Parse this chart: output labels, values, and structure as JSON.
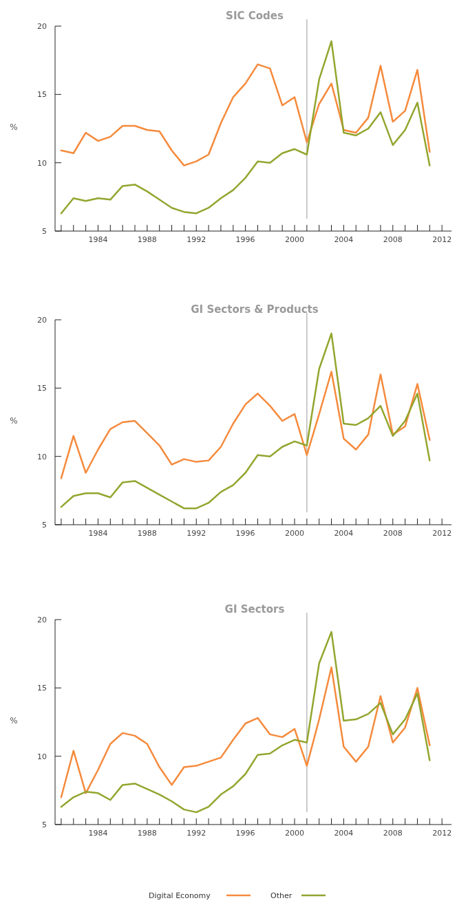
{
  "chart_data": [
    {
      "type": "line",
      "title": "SIC Codes",
      "ylabel": "%",
      "x": [
        1981,
        1982,
        1983,
        1984,
        1985,
        1986,
        1987,
        1988,
        1989,
        1990,
        1991,
        1992,
        1993,
        1994,
        1995,
        1996,
        1997,
        1998,
        1999,
        2000,
        2001,
        2002,
        2003,
        2004,
        2005,
        2006,
        2007,
        2008,
        2009,
        2010,
        2011
      ],
      "series": [
        {
          "color": "#f58a3c",
          "values": [
            10.9,
            10.7,
            12.2,
            11.6,
            11.9,
            12.7,
            12.7,
            12.4,
            12.3,
            10.9,
            9.8,
            10.1,
            10.6,
            12.9,
            14.8,
            15.8,
            17.2,
            16.9,
            14.2,
            14.8,
            11.5,
            14.3,
            15.8,
            12.4,
            12.2,
            13.3,
            17.1,
            13.0,
            13.8,
            16.8,
            10.8
          ]
        },
        {
          "color": "#93a52e",
          "values": [
            6.3,
            7.4,
            7.2,
            7.4,
            7.3,
            8.3,
            8.4,
            7.9,
            7.3,
            6.7,
            6.4,
            6.3,
            6.7,
            7.4,
            8.0,
            8.9,
            10.1,
            10.0,
            10.7,
            11.0,
            10.6,
            16.1,
            18.9,
            12.2,
            12.0,
            12.5,
            13.7,
            11.3,
            12.4,
            14.4,
            9.8
          ]
        }
      ],
      "xlim": [
        1980.5,
        2013
      ],
      "xticks": [
        {
          "value": 1981,
          "label": null
        },
        {
          "value": 1982,
          "label": null
        },
        {
          "value": 1983,
          "label": null
        },
        1984,
        {
          "value": 1985,
          "label": null
        },
        {
          "value": 1986,
          "label": null
        },
        {
          "value": 1987,
          "label": null
        },
        1988,
        {
          "value": 1989,
          "label": null
        },
        {
          "value": 1990,
          "label": null
        },
        {
          "value": 1991,
          "label": null
        },
        1992,
        {
          "value": 1993,
          "label": null
        },
        {
          "value": 1994,
          "label": null
        },
        {
          "value": 1995,
          "label": null
        },
        1996,
        {
          "value": 1997,
          "label": null
        },
        {
          "value": 1998,
          "label": null
        },
        {
          "value": 1999,
          "label": null
        },
        2000,
        {
          "value": 2001,
          "label": null
        },
        {
          "value": 2002,
          "label": null
        },
        {
          "value": 2003,
          "label": null
        },
        2004,
        {
          "value": 2005,
          "label": null
        },
        {
          "value": 2006,
          "label": null
        },
        {
          "value": 2007,
          "label": null
        },
        2008,
        {
          "value": 2009,
          "label": null
        },
        {
          "value": 2010,
          "label": null
        },
        {
          "value": 2011,
          "label": null
        },
        2012
      ],
      "ylim": [
        5,
        20
      ],
      "yticks": [
        5,
        10,
        15,
        20
      ],
      "grid": false,
      "legend": false,
      "ref_lines": [
        {
          "axis": "x",
          "value": 2001,
          "label": null,
          "color": "#aaaaaa"
        }
      ]
    },
    {
      "type": "line",
      "title": "GI Sectors & Products",
      "ylabel": "%",
      "x": [
        1981,
        1982,
        1983,
        1984,
        1985,
        1986,
        1987,
        1988,
        1989,
        1990,
        1991,
        1992,
        1993,
        1994,
        1995,
        1996,
        1997,
        1998,
        1999,
        2000,
        2001,
        2002,
        2003,
        2004,
        2005,
        2006,
        2007,
        2008,
        2009,
        2010,
        2011
      ],
      "series": [
        {
          "color": "#f58a3c",
          "values": [
            8.4,
            11.5,
            8.8,
            10.5,
            12.0,
            12.5,
            12.6,
            11.7,
            10.8,
            9.4,
            9.8,
            9.6,
            9.7,
            10.7,
            12.4,
            13.8,
            14.6,
            13.7,
            12.6,
            13.1,
            10.1,
            13.1,
            16.2,
            11.3,
            10.5,
            11.6,
            16.0,
            11.6,
            12.2,
            15.3,
            11.2
          ]
        },
        {
          "color": "#93a52e",
          "values": [
            6.3,
            7.1,
            7.3,
            7.3,
            7.0,
            8.1,
            8.2,
            7.7,
            7.2,
            6.7,
            6.2,
            6.2,
            6.6,
            7.4,
            7.9,
            8.8,
            10.1,
            10.0,
            10.7,
            11.1,
            10.8,
            16.4,
            19.0,
            12.4,
            12.3,
            12.8,
            13.7,
            11.5,
            12.6,
            14.6,
            9.7
          ]
        }
      ],
      "xlim": [
        1980.5,
        2013
      ],
      "xticks": [
        {
          "value": 1981,
          "label": null
        },
        {
          "value": 1982,
          "label": null
        },
        {
          "value": 1983,
          "label": null
        },
        1984,
        {
          "value": 1985,
          "label": null
        },
        {
          "value": 1986,
          "label": null
        },
        {
          "value": 1987,
          "label": null
        },
        1988,
        {
          "value": 1989,
          "label": null
        },
        {
          "value": 1990,
          "label": null
        },
        {
          "value": 1991,
          "label": null
        },
        1992,
        {
          "value": 1993,
          "label": null
        },
        {
          "value": 1994,
          "label": null
        },
        {
          "value": 1995,
          "label": null
        },
        1996,
        {
          "value": 1997,
          "label": null
        },
        {
          "value": 1998,
          "label": null
        },
        {
          "value": 1999,
          "label": null
        },
        2000,
        {
          "value": 2001,
          "label": null
        },
        {
          "value": 2002,
          "label": null
        },
        {
          "value": 2003,
          "label": null
        },
        2004,
        {
          "value": 2005,
          "label": null
        },
        {
          "value": 2006,
          "label": null
        },
        {
          "value": 2007,
          "label": null
        },
        2008,
        {
          "value": 2009,
          "label": null
        },
        {
          "value": 2010,
          "label": null
        },
        {
          "value": 2011,
          "label": null
        },
        2012
      ],
      "ylim": [
        5,
        20
      ],
      "yticks": [
        5,
        10,
        15,
        20
      ],
      "grid": false,
      "legend": false,
      "ref_lines": [
        {
          "axis": "x",
          "value": 2001,
          "label": null,
          "color": "#aaaaaa"
        }
      ]
    },
    {
      "type": "line",
      "title": "GI Sectors",
      "ylabel": "%",
      "x": [
        1981,
        1982,
        1983,
        1984,
        1985,
        1986,
        1987,
        1988,
        1989,
        1990,
        1991,
        1992,
        1993,
        1994,
        1995,
        1996,
        1997,
        1998,
        1999,
        2000,
        2001,
        2002,
        2003,
        2004,
        2005,
        2006,
        2007,
        2008,
        2009,
        2010,
        2011
      ],
      "series": [
        {
          "name": "Digital Economy",
          "color": "#f58a3c",
          "values": [
            7.0,
            10.4,
            7.3,
            9.0,
            10.9,
            11.7,
            11.5,
            10.9,
            9.2,
            7.9,
            9.2,
            9.3,
            9.6,
            9.9,
            11.2,
            12.4,
            12.8,
            11.6,
            11.4,
            12.0,
            9.3,
            12.7,
            16.5,
            10.7,
            9.6,
            10.7,
            14.4,
            11.0,
            12.1,
            15.0,
            10.8
          ]
        },
        {
          "name": "Other",
          "color": "#93a52e",
          "values": [
            6.3,
            7.0,
            7.4,
            7.3,
            6.8,
            7.9,
            8.0,
            7.6,
            7.2,
            6.7,
            6.1,
            5.9,
            6.3,
            7.2,
            7.8,
            8.7,
            10.1,
            10.2,
            10.8,
            11.2,
            11.0,
            16.8,
            19.1,
            12.6,
            12.7,
            13.1,
            13.9,
            11.6,
            12.7,
            14.6,
            9.7
          ]
        }
      ],
      "xlim": [
        1980.5,
        2013
      ],
      "xticks": [
        {
          "value": 1981,
          "label": null
        },
        {
          "value": 1982,
          "label": null
        },
        {
          "value": 1983,
          "label": null
        },
        1984,
        {
          "value": 1985,
          "label": null
        },
        {
          "value": 1986,
          "label": null
        },
        {
          "value": 1987,
          "label": null
        },
        1988,
        {
          "value": 1989,
          "label": null
        },
        {
          "value": 1990,
          "label": null
        },
        {
          "value": 1991,
          "label": null
        },
        1992,
        {
          "value": 1993,
          "label": null
        },
        {
          "value": 1994,
          "label": null
        },
        {
          "value": 1995,
          "label": null
        },
        1996,
        {
          "value": 1997,
          "label": null
        },
        {
          "value": 1998,
          "label": null
        },
        {
          "value": 1999,
          "label": null
        },
        2000,
        {
          "value": 2001,
          "label": null
        },
        {
          "value": 2002,
          "label": null
        },
        {
          "value": 2003,
          "label": null
        },
        2004,
        {
          "value": 2005,
          "label": null
        },
        {
          "value": 2006,
          "label": null
        },
        {
          "value": 2007,
          "label": null
        },
        2008,
        {
          "value": 2009,
          "label": null
        },
        {
          "value": 2010,
          "label": null
        },
        {
          "value": 2011,
          "label": null
        },
        2012
      ],
      "ylim": [
        5,
        20
      ],
      "yticks": [
        5,
        10,
        15,
        20
      ],
      "grid": false,
      "legend": "bottom",
      "ref_lines": [
        {
          "axis": "x",
          "value": 2001,
          "label": null,
          "color": "#aaaaaa"
        }
      ]
    }
  ]
}
